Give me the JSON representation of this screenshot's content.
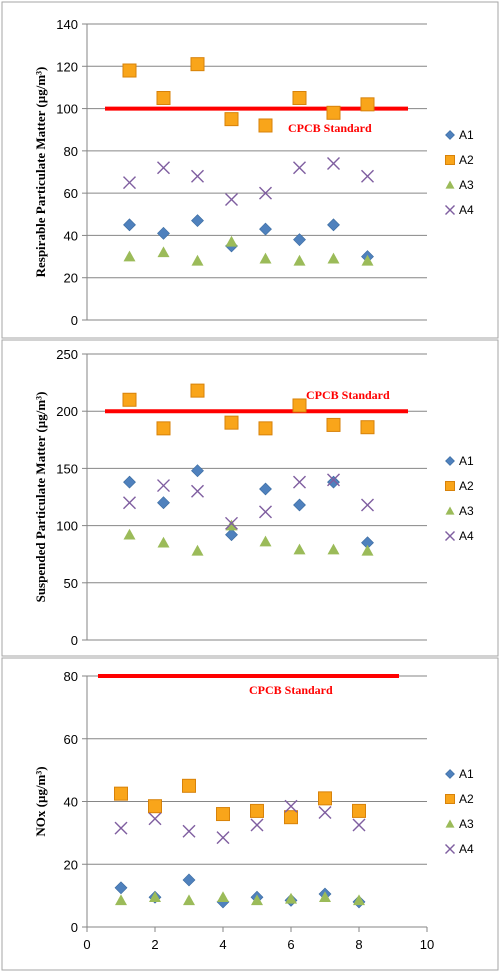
{
  "colors": {
    "A1": "#4f81bd",
    "A2": "#f9a51a",
    "A3": "#9bbb59",
    "A4": "#7f5ea0",
    "standard": "#ff0000",
    "grid": "#868686",
    "frame": "#a6a6a6"
  },
  "chart_data": [
    {
      "type": "scatter",
      "title": "",
      "ylabel": "Respirable Particulate Matter (µg/m³)",
      "xlabel": "",
      "xlim": [
        0,
        10
      ],
      "ylim": [
        0,
        140
      ],
      "yticks": [
        0,
        20,
        40,
        60,
        80,
        100,
        120,
        140
      ],
      "xticks": [],
      "grid": true,
      "legend": "right",
      "standard": {
        "label": "CPCB  Standard",
        "value": 100,
        "x_range": [
          1,
          10
        ]
      },
      "series": [
        {
          "name": "A1",
          "marker": "diamond",
          "x": [
            1.25,
            2.25,
            3.25,
            4.25,
            5.25,
            6.25,
            7.25,
            8.25
          ],
          "y": [
            45,
            41,
            47,
            35,
            43,
            38,
            45,
            30
          ]
        },
        {
          "name": "A2",
          "marker": "square",
          "x": [
            1.25,
            2.25,
            3.25,
            4.25,
            5.25,
            6.25,
            7.25,
            8.25
          ],
          "y": [
            118,
            105,
            121,
            95,
            92,
            105,
            98,
            102
          ]
        },
        {
          "name": "A3",
          "marker": "triangle",
          "x": [
            1.25,
            2.25,
            3.25,
            4.25,
            5.25,
            6.25,
            7.25,
            8.25
          ],
          "y": [
            30,
            32,
            28,
            37,
            29,
            28,
            29,
            28
          ]
        },
        {
          "name": "A4",
          "marker": "x",
          "x": [
            1.25,
            2.25,
            3.25,
            4.25,
            5.25,
            6.25,
            7.25,
            8.25
          ],
          "y": [
            65,
            72,
            68,
            57,
            60,
            72,
            74,
            68
          ]
        }
      ]
    },
    {
      "type": "scatter",
      "title": "",
      "ylabel": "Suspended Particulate Matter (µg/m³)",
      "xlabel": "",
      "xlim": [
        0,
        10
      ],
      "ylim": [
        0,
        250
      ],
      "yticks": [
        0,
        50,
        100,
        150,
        200,
        250
      ],
      "xticks": [],
      "grid": true,
      "legend": "right",
      "standard": {
        "label": "CPCB  Standard",
        "value": 200,
        "x_range": [
          1,
          10
        ]
      },
      "series": [
        {
          "name": "A1",
          "marker": "diamond",
          "x": [
            1.25,
            2.25,
            3.25,
            4.25,
            5.25,
            6.25,
            7.25,
            8.25
          ],
          "y": [
            138,
            120,
            148,
            92,
            132,
            118,
            138,
            85
          ]
        },
        {
          "name": "A2",
          "marker": "square",
          "x": [
            1.25,
            2.25,
            3.25,
            4.25,
            5.25,
            6.25,
            7.25,
            8.25
          ],
          "y": [
            210,
            185,
            218,
            190,
            185,
            205,
            188,
            186
          ]
        },
        {
          "name": "A3",
          "marker": "triangle",
          "x": [
            1.25,
            2.25,
            3.25,
            4.25,
            5.25,
            6.25,
            7.25,
            8.25
          ],
          "y": [
            92,
            85,
            78,
            100,
            86,
            79,
            79,
            78
          ]
        },
        {
          "name": "A4",
          "marker": "x",
          "x": [
            1.25,
            2.25,
            3.25,
            4.25,
            5.25,
            6.25,
            7.25,
            8.25
          ],
          "y": [
            120,
            135,
            130,
            102,
            112,
            138,
            140,
            118
          ]
        }
      ]
    },
    {
      "type": "scatter",
      "title": "",
      "ylabel": "NOx (µg/m³)",
      "xlabel": "",
      "xlim": [
        0,
        10
      ],
      "ylim": [
        0,
        80
      ],
      "yticks": [
        0,
        20,
        40,
        60,
        80
      ],
      "xticks": [
        0,
        2,
        4,
        6,
        8,
        10
      ],
      "grid": true,
      "legend": "right",
      "standard": {
        "label": "CPCB  Standard",
        "value": 80,
        "x_range": [
          0.5,
          9.5
        ]
      },
      "series": [
        {
          "name": "A1",
          "marker": "diamond",
          "x": [
            1,
            2,
            3,
            4,
            5,
            6,
            7,
            8
          ],
          "y": [
            12.5,
            9.5,
            15,
            8,
            9.5,
            8.5,
            10.5,
            8
          ]
        },
        {
          "name": "A2",
          "marker": "square",
          "x": [
            1,
            2,
            3,
            4,
            5,
            6,
            7,
            8
          ],
          "y": [
            42.5,
            38.5,
            45,
            36,
            37,
            35,
            41,
            37
          ]
        },
        {
          "name": "A3",
          "marker": "triangle",
          "x": [
            1,
            2,
            3,
            4,
            5,
            6,
            7,
            8
          ],
          "y": [
            8.5,
            9.5,
            8.5,
            9.5,
            8.5,
            9,
            9.5,
            8.5
          ]
        },
        {
          "name": "A4",
          "marker": "x",
          "x": [
            1,
            2,
            3,
            4,
            5,
            6,
            7,
            8
          ],
          "y": [
            31.5,
            34.5,
            30.5,
            28.5,
            32.5,
            38.5,
            36.5,
            32.5
          ]
        }
      ]
    }
  ]
}
